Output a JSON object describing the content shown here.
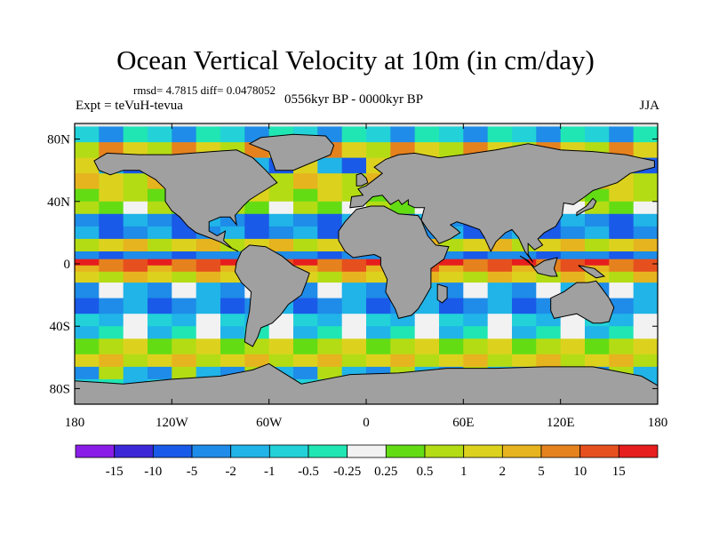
{
  "title": "Ocean Vertical Velocity at 10m (in cm/day)",
  "stats": {
    "rmsd": "rmsd= 4.7815",
    "diff": "diff= 0.0478052"
  },
  "experiment": "Expt = teVuH-tevua",
  "period": "0556kyr BP - 0000kyr BP",
  "season": "JJA",
  "map": {
    "lat_ticks": [
      "80N",
      "40N",
      "0",
      "40S",
      "80S"
    ],
    "lon_ticks": [
      "180",
      "120W",
      "60W",
      "0",
      "60E",
      "120E",
      "180"
    ],
    "land_color": "#a0a0a0",
    "ocean_default": "#e6e6e6"
  },
  "colorbar": {
    "labels": [
      "-15",
      "-10",
      "-5",
      "-2",
      "-1",
      "-0.5",
      "-0.25",
      "0.25",
      "0.5",
      "1",
      "2",
      "5",
      "10",
      "15"
    ],
    "colors": [
      "#8a1ee8",
      "#3d28d8",
      "#1a5ae8",
      "#1e8ce8",
      "#20b4e8",
      "#22d2d8",
      "#20e6b4",
      "#f2f2f2",
      "#64dc14",
      "#b4dc14",
      "#dcd21e",
      "#e6b41e",
      "#e6821e",
      "#e6501e",
      "#e61e1e"
    ]
  }
}
